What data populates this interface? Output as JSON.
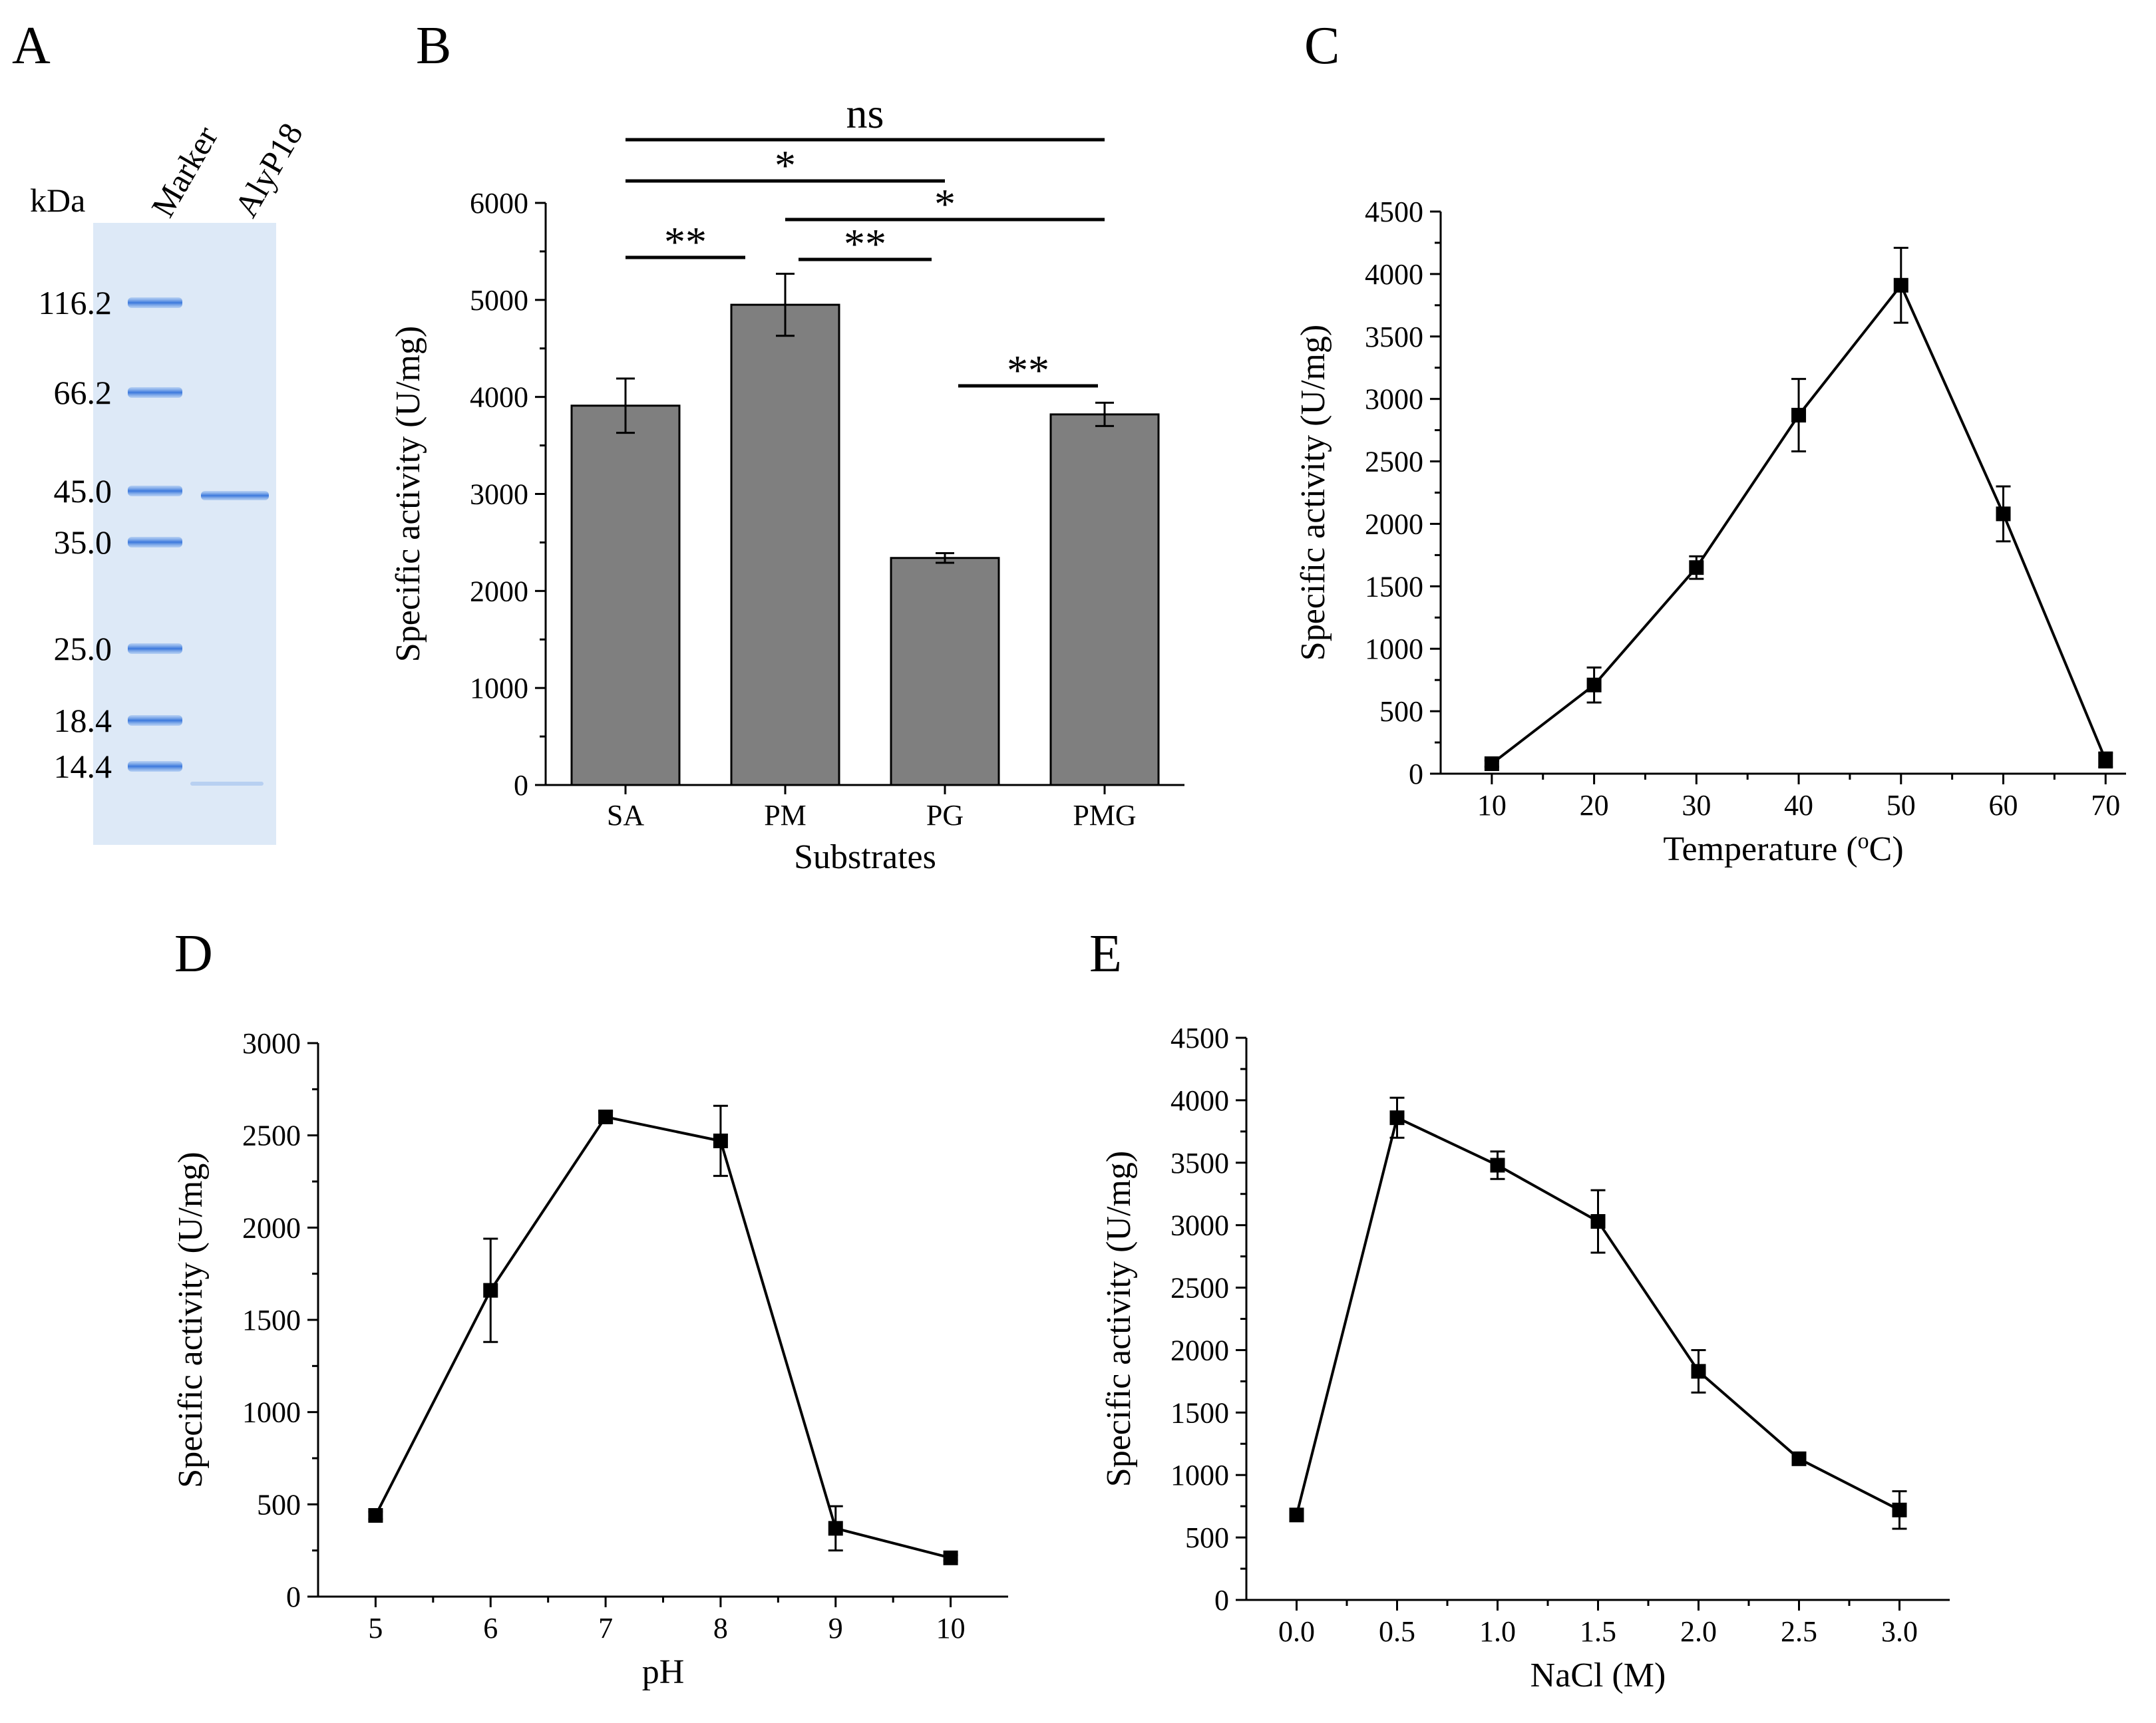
{
  "panel_labels": [
    "A",
    "B",
    "C",
    "D",
    "E"
  ],
  "gel": {
    "unit": "kDa",
    "lanes": [
      "Marker",
      "AlyP18"
    ],
    "markers": [
      "116.2",
      "66.2",
      "45.0",
      "35.0",
      "25.0",
      "18.4",
      "14.4"
    ],
    "colors": {
      "gel_bg": "#dde9f7",
      "band": "#4a86e0"
    }
  },
  "chart_data": [
    {
      "id": "B",
      "type": "bar",
      "categories": [
        "SA",
        "PM",
        "PG",
        "PMG"
      ],
      "values": [
        3910,
        4950,
        2340,
        3820
      ],
      "errors": [
        280,
        320,
        50,
        120
      ],
      "xlabel": "Substrates",
      "ylabel": "Specific activity (U/mg)",
      "ylim": [
        0,
        6000
      ],
      "yticks": [
        0,
        1000,
        2000,
        3000,
        4000,
        5000,
        6000
      ],
      "significance": [
        {
          "from": "SA",
          "to": "PMG",
          "label": "ns"
        },
        {
          "from": "SA",
          "to": "PG",
          "label": "*"
        },
        {
          "from": "PM",
          "to": "PMG",
          "label": "*"
        },
        {
          "from": "SA",
          "to": "PM",
          "label": "**"
        },
        {
          "from": "PM",
          "to": "PG",
          "label": "**"
        },
        {
          "from": "PG",
          "to": "PMG",
          "label": "**"
        }
      ]
    },
    {
      "id": "C",
      "type": "line",
      "x": [
        10,
        20,
        30,
        40,
        50,
        60,
        70
      ],
      "values": [
        80,
        710,
        1650,
        2870,
        3910,
        2080,
        110
      ],
      "errors": [
        25,
        140,
        90,
        290,
        300,
        220,
        60
      ],
      "xlabel": "Temperature (",
      "xlabel_sup": "o",
      "xlabel_end": "C)",
      "ylabel": "Specific activity (U/mg)",
      "xlim": [
        5,
        72
      ],
      "xticks": [
        10,
        20,
        30,
        40,
        50,
        60,
        70
      ],
      "ylim": [
        0,
        4500
      ],
      "yticks": [
        0,
        500,
        1000,
        1500,
        2000,
        2500,
        3000,
        3500,
        4000,
        4500
      ]
    },
    {
      "id": "D",
      "type": "line",
      "x": [
        5,
        6,
        7,
        8,
        9,
        10
      ],
      "values": [
        440,
        1660,
        2600,
        2470,
        370,
        210
      ],
      "errors": [
        20,
        280,
        30,
        190,
        120,
        15
      ],
      "xlabel": "pH",
      "ylabel": "Specific activity (U/mg)",
      "xlim": [
        4.5,
        10.5
      ],
      "xticks": [
        5,
        6,
        7,
        8,
        9,
        10
      ],
      "ylim": [
        0,
        3000
      ],
      "yticks": [
        0,
        500,
        1000,
        1500,
        2000,
        2500,
        3000
      ]
    },
    {
      "id": "E",
      "type": "line",
      "x": [
        0.0,
        0.5,
        1.0,
        1.5,
        2.0,
        2.5,
        3.0
      ],
      "values": [
        680,
        3860,
        3480,
        3030,
        1830,
        1130,
        720
      ],
      "errors": [
        25,
        160,
        110,
        250,
        170,
        30,
        150
      ],
      "xlabel": "NaCl (M)",
      "ylabel": "Specific activity (U/mg)",
      "xlim": [
        -0.25,
        3.25
      ],
      "xticks": [
        "0.0",
        "0.5",
        "1.0",
        "1.5",
        "2.0",
        "2.5",
        "3.0"
      ],
      "ylim": [
        0,
        4500
      ],
      "yticks": [
        0,
        500,
        1000,
        1500,
        2000,
        2500,
        3000,
        3500,
        4000,
        4500
      ]
    }
  ]
}
